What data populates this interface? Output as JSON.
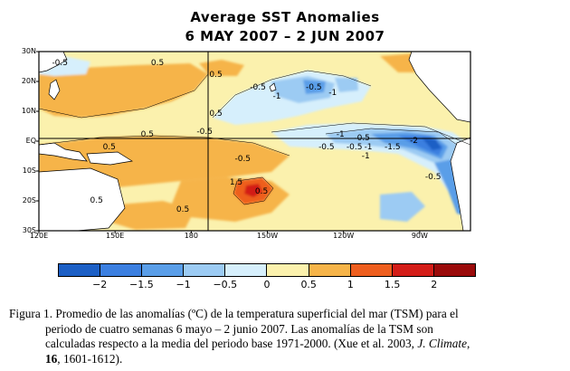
{
  "title": {
    "line1": "Average SST Anomalies",
    "line2": "6 MAY 2007 – 2 JUN 2007"
  },
  "map": {
    "lat_labels": [
      "30N",
      "20N",
      "10N",
      "EQ",
      "10S",
      "20S",
      "30S"
    ],
    "lon_labels": [
      "120E",
      "150E",
      "180",
      "150W",
      "120W",
      "90W"
    ],
    "contour_labels": [
      {
        "text": "-0.5",
        "lon": 128,
        "lat": 26
      },
      {
        "text": "0.5",
        "lon": 167,
        "lat": 26
      },
      {
        "text": "0.5",
        "lon": 190,
        "lat": 22
      },
      {
        "text": "-0.5",
        "lon": 206,
        "lat": 18
      },
      {
        "text": "-1",
        "lon": 215,
        "lat": 15
      },
      {
        "text": "-0.5",
        "lon": 228,
        "lat": 18
      },
      {
        "text": "-1",
        "lon": 237,
        "lat": 16
      },
      {
        "text": "0.5",
        "lon": 190,
        "lat": 9
      },
      {
        "text": "-0.5",
        "lon": 185,
        "lat": 3
      },
      {
        "text": "0.5",
        "lon": 163,
        "lat": 2
      },
      {
        "text": "-1",
        "lon": 240,
        "lat": 2
      },
      {
        "text": "-0.5",
        "lon": 247,
        "lat": 1
      },
      {
        "text": "0.5",
        "lon": 148,
        "lat": -2
      },
      {
        "text": "-0.5",
        "lon": 233,
        "lat": -2
      },
      {
        "text": "-0.5",
        "lon": 244,
        "lat": -2
      },
      {
        "text": "-1",
        "lon": 251,
        "lat": -2
      },
      {
        "text": "-1.5",
        "lon": 259,
        "lat": -2
      },
      {
        "text": "-2",
        "lon": 269,
        "lat": 0
      },
      {
        "text": "-1",
        "lon": 250,
        "lat": -5
      },
      {
        "text": "-0.5",
        "lon": 200,
        "lat": -6
      },
      {
        "text": "-0.5",
        "lon": 275,
        "lat": -12
      },
      {
        "text": "1.5",
        "lon": 198,
        "lat": -14
      },
      {
        "text": "0.5",
        "lon": 208,
        "lat": -17
      },
      {
        "text": "0.5",
        "lon": 143,
        "lat": -20
      },
      {
        "text": "0.5",
        "lon": 177,
        "lat": -23
      }
    ],
    "colors": {
      "lt_-2": "#1c5fc5",
      "-2_-1.5": "#3b7fe0",
      "-1.5_-1": "#5a9ee8",
      "-1_-0.5": "#9ccbf3",
      "-0.5_0": "#d6effc",
      "0_0.5": "#fbf1ad",
      "0.5_1": "#f6b449",
      "1_1.5": "#ee5e1e",
      "1.5_2": "#d31d18",
      "gt_2": "#9a0a0a",
      "land": "#ffffff"
    }
  },
  "colorbar": {
    "tick_labels": [
      "−2",
      "−1.5",
      "−1",
      "−0.5",
      "0",
      "0.5",
      "1",
      "1.5",
      "2"
    ]
  },
  "caption": {
    "first_line": "Figura 1. Promedio de las anomalías (ºC) de la temperatura superficial del mar (TSM) para el",
    "line2": "periodo de cuatro semanas 6 mayo – 2 junio 2007. Las anomalías de la TSM son",
    "line3_pre": "calculadas respecto a la media del periodo base 1971-2000. (Xue et al. 2003, ",
    "journal": "J. Climate",
    "line3_post": ",",
    "volume": "16",
    "pages": ", 1601-1612)."
  }
}
